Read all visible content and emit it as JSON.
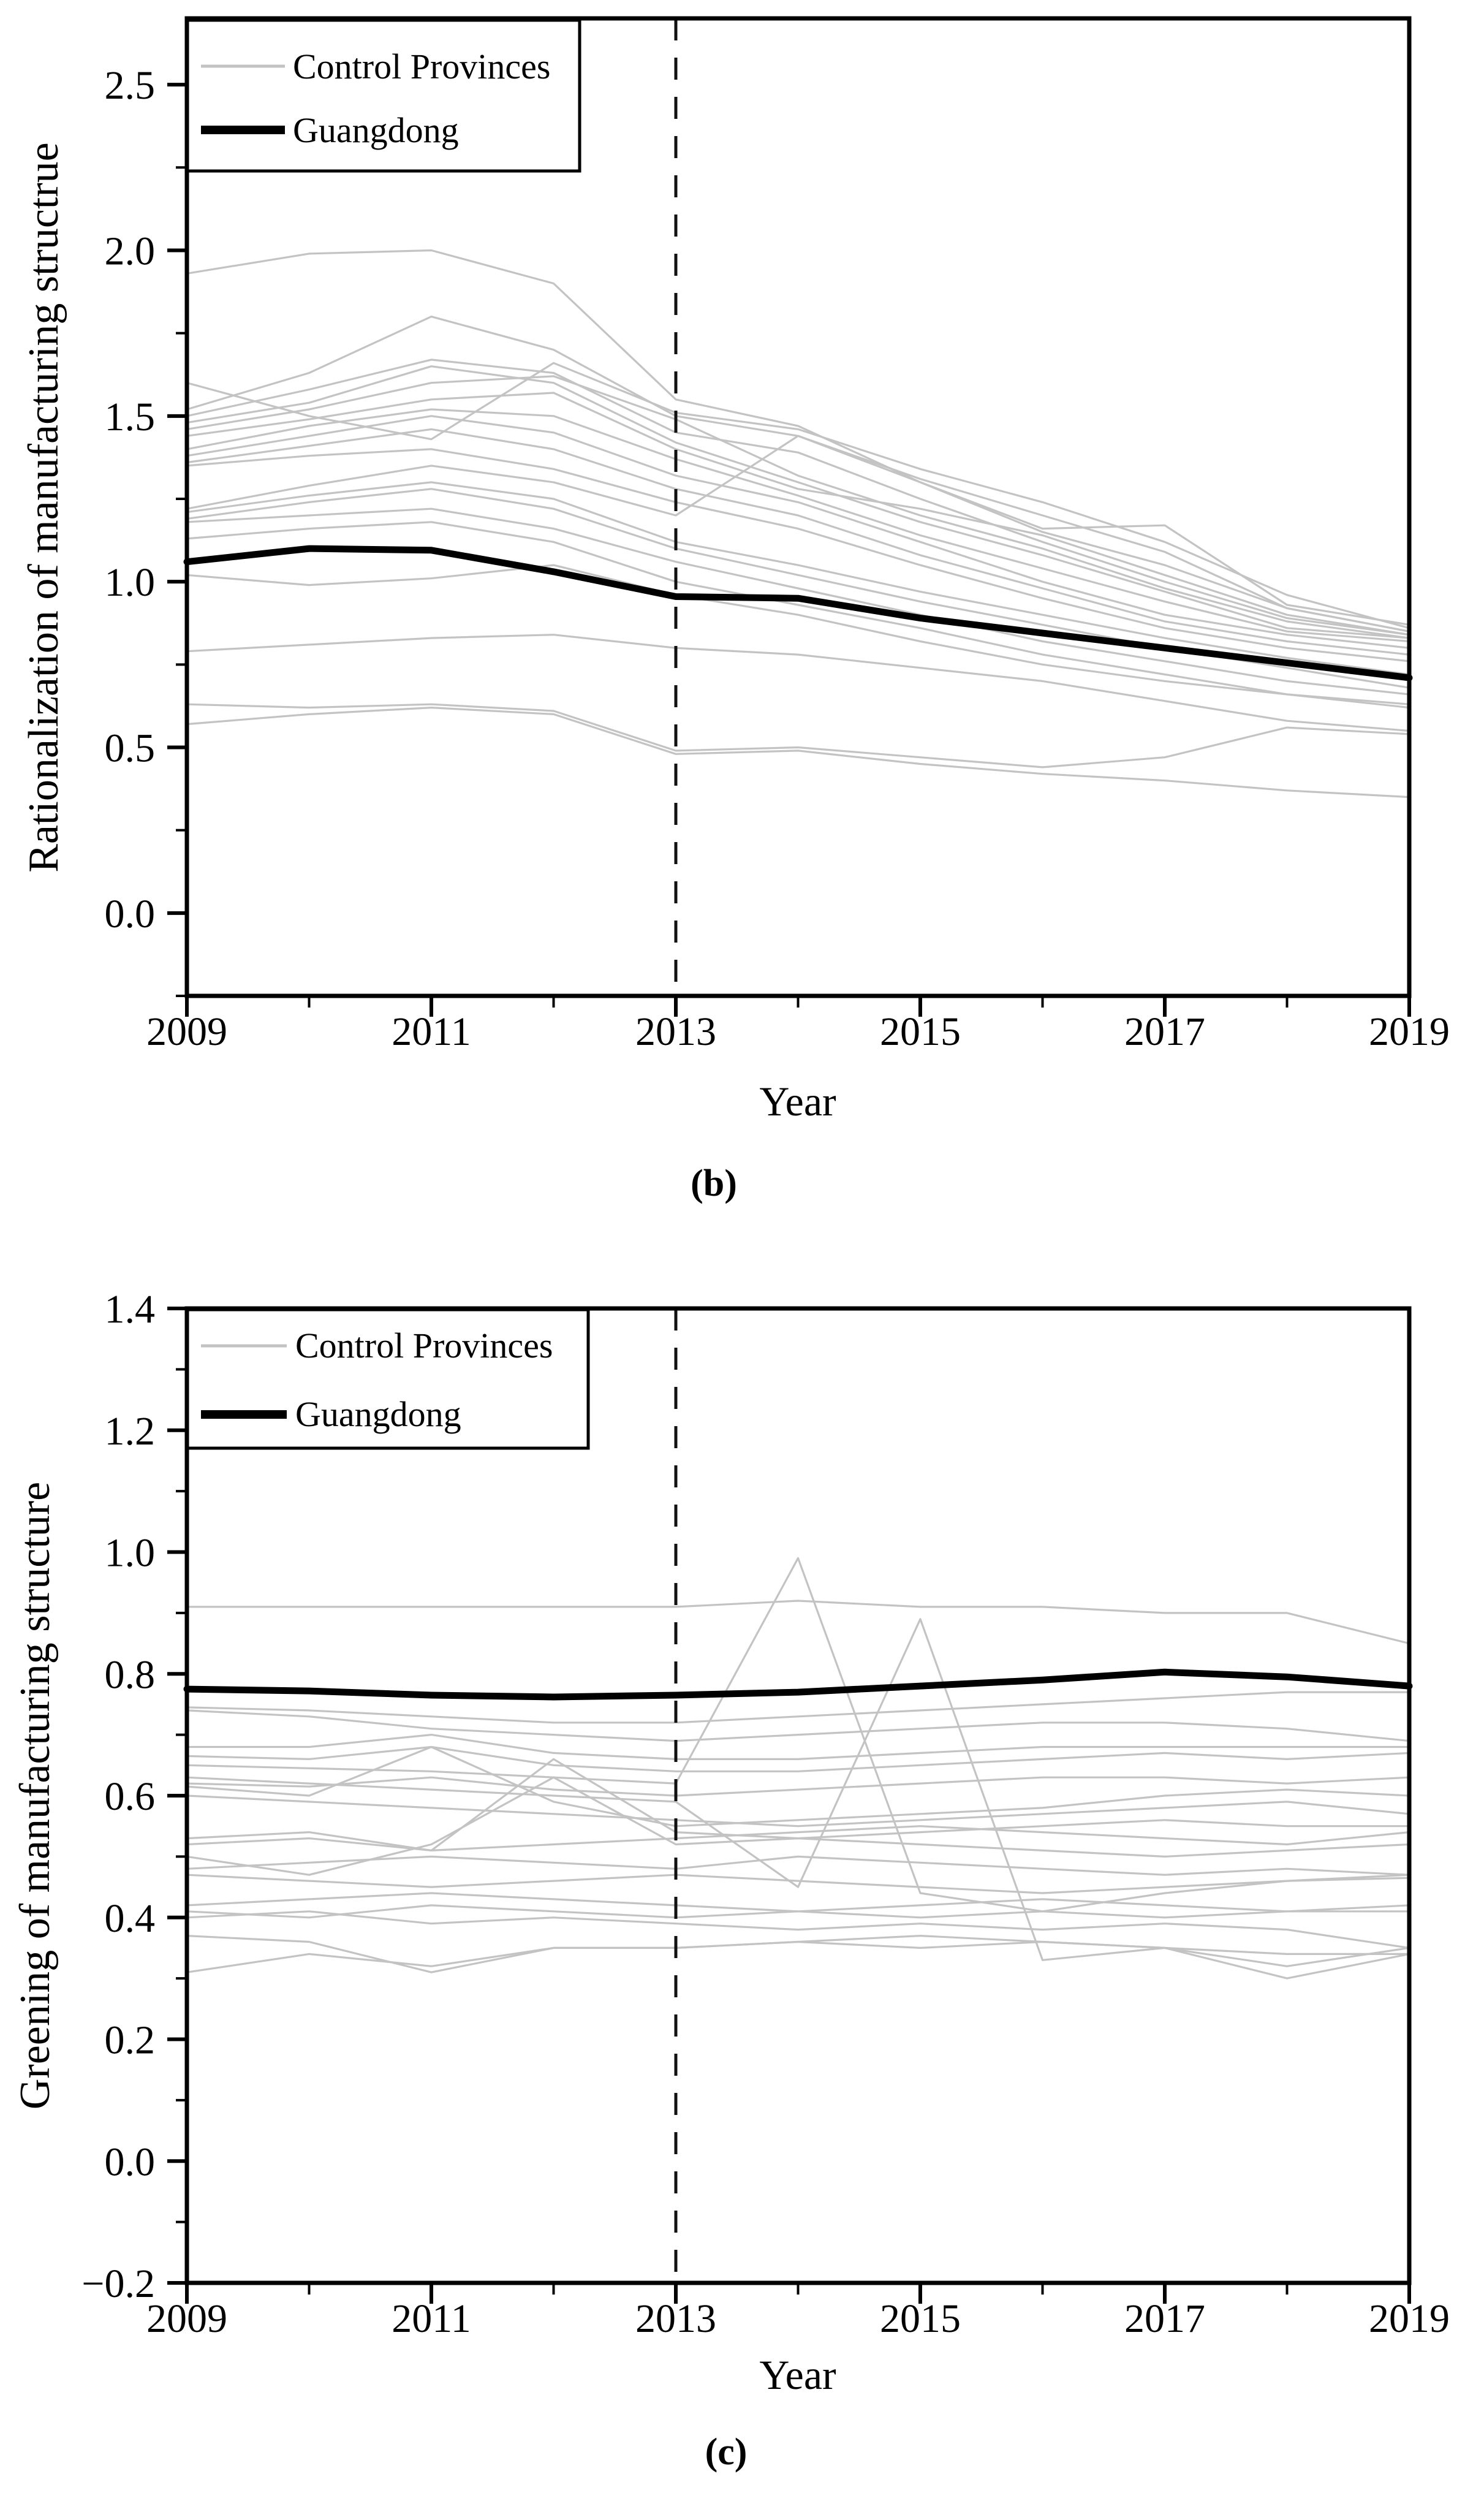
{
  "figure": {
    "background": "#ffffff",
    "panels": [
      "b",
      "c"
    ]
  },
  "colors": {
    "control_line": "#c3c3c3",
    "guangdong_line": "#000000",
    "frame": "#000000",
    "policy_dash": "#111111"
  },
  "chart_data": [
    {
      "type": "line",
      "caption": "(b)",
      "xlabel": "Year",
      "ylabel": "Rationalization of manufacturing structrue",
      "x": [
        2009,
        2010,
        2011,
        2012,
        2013,
        2014,
        2015,
        2016,
        2017,
        2018,
        2019
      ],
      "xlim": [
        2009,
        2019
      ],
      "ylim": [
        -0.25,
        2.7
      ],
      "x_major_ticks": [
        2009,
        2011,
        2013,
        2015,
        2017,
        2019
      ],
      "x_major_tick_labels": [
        "2009",
        "2011",
        "2013",
        "2015",
        "2017",
        "2019"
      ],
      "x_minor_ticks": [
        2010,
        2012,
        2014,
        2016,
        2018
      ],
      "y_major_ticks": [
        0.0,
        0.5,
        1.0,
        1.5,
        2.0,
        2.5
      ],
      "y_major_tick_labels": [
        "0.0",
        "0.5",
        "1.0",
        "1.5",
        "2.0",
        "2.5"
      ],
      "y_minor_ticks": [
        -0.25,
        0.25,
        0.75,
        1.25,
        1.75,
        2.25
      ],
      "grid": false,
      "policy_line_x": 2013,
      "legend_position": "top-left",
      "legend": [
        {
          "label": "Control Provinces",
          "color": "#c3c3c3",
          "line_width": 3.2
        },
        {
          "label": "Guangdong",
          "color": "#000000",
          "line_width": 11
        }
      ],
      "series": [
        {
          "name": "Guangdong",
          "color": "#000000",
          "line_width": 11,
          "values": [
            1.06,
            1.1,
            1.095,
            1.03,
            0.955,
            0.95,
            0.89,
            0.845,
            0.8,
            0.755,
            0.71
          ]
        },
        {
          "name": "Control Provinces",
          "color": "#c3c3c3",
          "line_width": 3.2,
          "values_set": [
            [
              1.93,
              1.99,
              2.0,
              1.9,
              1.55,
              1.47,
              1.3,
              1.16,
              1.17,
              0.93,
              0.87
            ],
            [
              1.6,
              1.5,
              1.43,
              1.66,
              1.51,
              1.46,
              1.34,
              1.24,
              1.12,
              0.96,
              0.86
            ],
            [
              1.52,
              1.63,
              1.8,
              1.7,
              1.5,
              1.44,
              1.31,
              1.2,
              1.09,
              0.92,
              0.85
            ],
            [
              1.5,
              1.58,
              1.67,
              1.63,
              1.45,
              1.39,
              1.25,
              1.12,
              1.0,
              0.89,
              0.84
            ],
            [
              1.48,
              1.54,
              1.65,
              1.6,
              1.42,
              1.3,
              1.18,
              1.08,
              0.97,
              0.86,
              0.83
            ],
            [
              1.46,
              1.52,
              1.6,
              1.62,
              1.49,
              1.32,
              1.2,
              1.1,
              0.98,
              0.88,
              0.83
            ],
            [
              1.44,
              1.49,
              1.55,
              1.57,
              1.4,
              1.28,
              1.22,
              1.14,
              1.02,
              0.9,
              0.84
            ],
            [
              1.4,
              1.47,
              1.52,
              1.5,
              1.37,
              1.26,
              1.14,
              1.04,
              0.94,
              0.85,
              0.82
            ],
            [
              1.38,
              1.44,
              1.5,
              1.45,
              1.32,
              1.24,
              1.12,
              1.0,
              0.9,
              0.84,
              0.8
            ],
            [
              1.36,
              1.41,
              1.46,
              1.4,
              1.28,
              1.2,
              1.08,
              0.98,
              0.88,
              0.82,
              0.78
            ],
            [
              1.35,
              1.38,
              1.4,
              1.34,
              1.24,
              1.16,
              1.05,
              0.95,
              0.86,
              0.8,
              0.76
            ],
            [
              1.22,
              1.29,
              1.35,
              1.3,
              1.2,
              1.44,
              1.3,
              1.15,
              1.05,
              0.92,
              0.85
            ],
            [
              1.21,
              1.26,
              1.3,
              1.25,
              1.12,
              1.05,
              0.97,
              0.9,
              0.83,
              0.77,
              0.72
            ],
            [
              1.19,
              1.24,
              1.28,
              1.22,
              1.1,
              1.02,
              0.94,
              0.87,
              0.8,
              0.74,
              0.68
            ],
            [
              1.18,
              1.2,
              1.22,
              1.16,
              1.06,
              0.98,
              0.9,
              0.82,
              0.76,
              0.7,
              0.66
            ],
            [
              1.13,
              1.16,
              1.18,
              1.12,
              1.0,
              0.93,
              0.86,
              0.78,
              0.72,
              0.66,
              0.63
            ],
            [
              1.02,
              0.99,
              1.01,
              1.05,
              0.96,
              0.9,
              0.82,
              0.75,
              0.7,
              0.66,
              0.62
            ],
            [
              0.79,
              0.81,
              0.83,
              0.84,
              0.8,
              0.78,
              0.74,
              0.7,
              0.64,
              0.58,
              0.55
            ],
            [
              0.63,
              0.62,
              0.63,
              0.61,
              0.49,
              0.5,
              0.47,
              0.44,
              0.47,
              0.56,
              0.54
            ],
            [
              0.57,
              0.6,
              0.62,
              0.6,
              0.48,
              0.49,
              0.45,
              0.42,
              0.4,
              0.37,
              0.35
            ]
          ]
        }
      ]
    },
    {
      "type": "line",
      "caption": "(c)",
      "xlabel": "Year",
      "ylabel": "Greening of manufacturing structure",
      "x": [
        2009,
        2010,
        2011,
        2012,
        2013,
        2014,
        2015,
        2016,
        2017,
        2018,
        2019
      ],
      "xlim": [
        2009,
        2019
      ],
      "ylim": [
        -0.2,
        1.4
      ],
      "x_major_ticks": [
        2009,
        2011,
        2013,
        2015,
        2017,
        2019
      ],
      "x_major_tick_labels": [
        "2009",
        "2011",
        "2013",
        "2015",
        "2017",
        "2019"
      ],
      "x_minor_ticks": [
        2010,
        2012,
        2014,
        2016,
        2018
      ],
      "y_major_ticks": [
        -0.2,
        0.0,
        0.2,
        0.4,
        0.6,
        0.8,
        1.0,
        1.2,
        1.4
      ],
      "y_major_tick_labels": [
        "−0.2",
        "0.0",
        "0.2",
        "0.4",
        "0.6",
        "0.8",
        "1.0",
        "1.2",
        "1.4"
      ],
      "y_minor_ticks": [
        -0.1,
        0.1,
        0.3,
        0.5,
        0.7,
        0.9,
        1.1,
        1.3
      ],
      "grid": false,
      "policy_line_x": 2013,
      "legend_position": "top-left",
      "legend": [
        {
          "label": "Control Provinces",
          "color": "#c3c3c3",
          "line_width": 3.2
        },
        {
          "label": "Guangdong",
          "color": "#000000",
          "line_width": 11
        }
      ],
      "series": [
        {
          "name": "Guangdong",
          "color": "#000000",
          "line_width": 11,
          "values": [
            0.775,
            0.772,
            0.765,
            0.762,
            0.765,
            0.77,
            0.78,
            0.79,
            0.803,
            0.795,
            0.78
          ]
        },
        {
          "name": "Control Provinces",
          "color": "#c3c3c3",
          "line_width": 3.2,
          "values_set": [
            [
              0.91,
              0.91,
              0.91,
              0.91,
              0.91,
              0.92,
              0.91,
              0.91,
              0.9,
              0.9,
              0.85
            ],
            [
              0.745,
              0.74,
              0.73,
              0.72,
              0.72,
              0.73,
              0.74,
              0.75,
              0.76,
              0.77,
              0.77
            ],
            [
              0.74,
              0.73,
              0.71,
              0.7,
              0.69,
              0.7,
              0.71,
              0.72,
              0.72,
              0.71,
              0.69
            ],
            [
              0.68,
              0.68,
              0.7,
              0.67,
              0.66,
              0.66,
              0.67,
              0.68,
              0.68,
              0.68,
              0.68
            ],
            [
              0.665,
              0.66,
              0.68,
              0.65,
              0.64,
              0.64,
              0.65,
              0.66,
              0.67,
              0.66,
              0.67
            ],
            [
              0.65,
              0.645,
              0.64,
              0.63,
              0.62,
              0.99,
              0.44,
              0.41,
              0.44,
              0.46,
              0.47
            ],
            [
              0.63,
              0.62,
              0.61,
              0.6,
              0.59,
              0.45,
              0.89,
              0.33,
              0.35,
              0.32,
              0.35
            ],
            [
              0.62,
              0.615,
              0.63,
              0.61,
              0.6,
              0.61,
              0.62,
              0.63,
              0.63,
              0.62,
              0.63
            ],
            [
              0.615,
              0.6,
              0.68,
              0.59,
              0.55,
              0.56,
              0.57,
              0.58,
              0.6,
              0.61,
              0.6
            ],
            [
              0.6,
              0.59,
              0.58,
              0.57,
              0.56,
              0.55,
              0.56,
              0.57,
              0.58,
              0.59,
              0.57
            ],
            [
              0.53,
              0.54,
              0.51,
              0.66,
              0.54,
              0.53,
              0.54,
              0.55,
              0.56,
              0.55,
              0.55
            ],
            [
              0.52,
              0.53,
              0.51,
              0.52,
              0.53,
              0.54,
              0.55,
              0.54,
              0.53,
              0.52,
              0.54
            ],
            [
              0.5,
              0.47,
              0.52,
              0.63,
              0.52,
              0.53,
              0.52,
              0.51,
              0.5,
              0.51,
              0.52
            ],
            [
              0.48,
              0.49,
              0.5,
              0.49,
              0.48,
              0.5,
              0.49,
              0.48,
              0.47,
              0.48,
              0.47
            ],
            [
              0.47,
              0.46,
              0.45,
              0.46,
              0.47,
              0.46,
              0.45,
              0.44,
              0.45,
              0.46,
              0.465
            ],
            [
              0.42,
              0.43,
              0.44,
              0.43,
              0.42,
              0.41,
              0.42,
              0.43,
              0.42,
              0.41,
              0.42
            ],
            [
              0.41,
              0.4,
              0.42,
              0.41,
              0.4,
              0.41,
              0.4,
              0.41,
              0.4,
              0.41,
              0.41
            ],
            [
              0.4,
              0.41,
              0.39,
              0.4,
              0.39,
              0.38,
              0.39,
              0.38,
              0.39,
              0.38,
              0.35
            ],
            [
              0.37,
              0.36,
              0.31,
              0.35,
              0.35,
              0.36,
              0.37,
              0.36,
              0.35,
              0.34,
              0.34
            ],
            [
              0.31,
              0.34,
              0.32,
              0.35,
              0.35,
              0.36,
              0.35,
              0.36,
              0.35,
              0.3,
              0.34
            ]
          ]
        }
      ]
    }
  ]
}
